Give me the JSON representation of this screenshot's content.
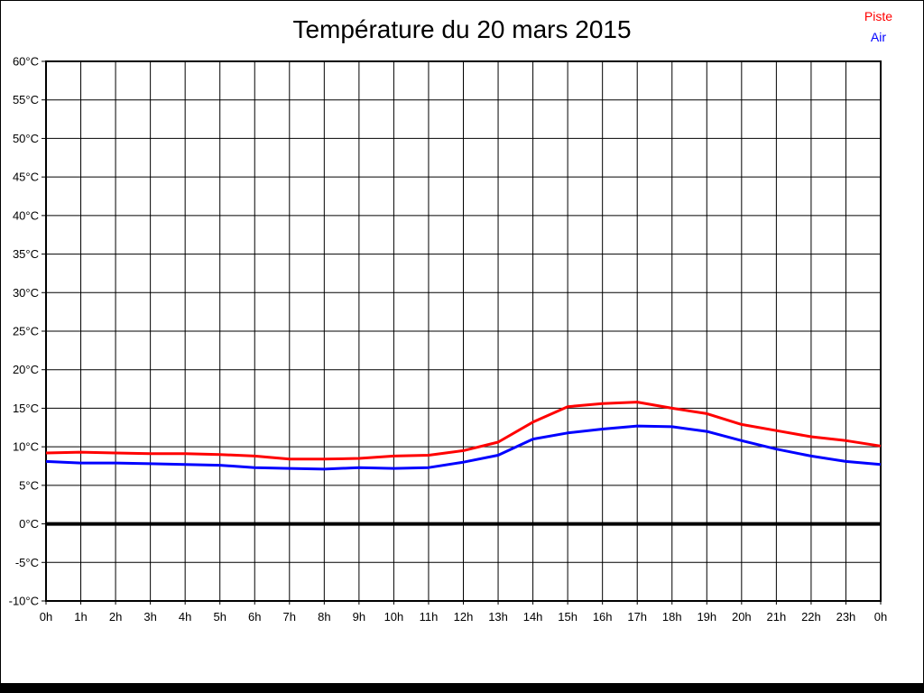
{
  "title": "Température du 20 mars 2015",
  "legend": {
    "items": [
      {
        "label": "Piste",
        "color": "#ff0000"
      },
      {
        "label": "Air",
        "color": "#0000ff"
      }
    ]
  },
  "chart_data": {
    "type": "line",
    "title": "Température du 20 mars 2015",
    "categories": [
      "0h",
      "1h",
      "2h",
      "3h",
      "4h",
      "5h",
      "6h",
      "7h",
      "8h",
      "9h",
      "10h",
      "11h",
      "12h",
      "13h",
      "14h",
      "15h",
      "16h",
      "17h",
      "18h",
      "19h",
      "20h",
      "21h",
      "22h",
      "23h",
      "0h"
    ],
    "x_hours": [
      0,
      1,
      2,
      3,
      4,
      5,
      6,
      7,
      8,
      9,
      10,
      11,
      12,
      13,
      14,
      15,
      16,
      17,
      18,
      19,
      20,
      21,
      22,
      23,
      24
    ],
    "series": [
      {
        "name": "Piste",
        "color": "#ff0000",
        "values": [
          9.2,
          9.3,
          9.2,
          9.1,
          9.1,
          9.0,
          8.8,
          8.4,
          8.4,
          8.5,
          8.8,
          8.9,
          9.5,
          10.6,
          13.2,
          15.2,
          15.6,
          15.8,
          15.0,
          14.3,
          12.9,
          12.1,
          11.3,
          10.8,
          10.1
        ]
      },
      {
        "name": "Air",
        "color": "#0000ff",
        "values": [
          8.1,
          7.9,
          7.9,
          7.8,
          7.7,
          7.6,
          7.3,
          7.2,
          7.1,
          7.3,
          7.2,
          7.3,
          8.0,
          8.9,
          11.0,
          11.8,
          12.3,
          12.7,
          12.6,
          12.0,
          10.8,
          9.7,
          8.8,
          8.1,
          7.7
        ]
      }
    ],
    "xlabel": "",
    "ylabel": "",
    "ylim": [
      -10,
      60
    ],
    "ytick_step": 5,
    "yticklabels": [
      "60°C",
      "55°C",
      "50°C",
      "45°C",
      "40°C",
      "35°C",
      "30°C",
      "25°C",
      "20°C",
      "15°C",
      "10°C",
      "5°C",
      "0°C",
      "-5°C",
      "-10°C"
    ],
    "grid": true,
    "grid_color": "#000000",
    "zero_line_emphasized": true,
    "legend_position": "top-right"
  }
}
